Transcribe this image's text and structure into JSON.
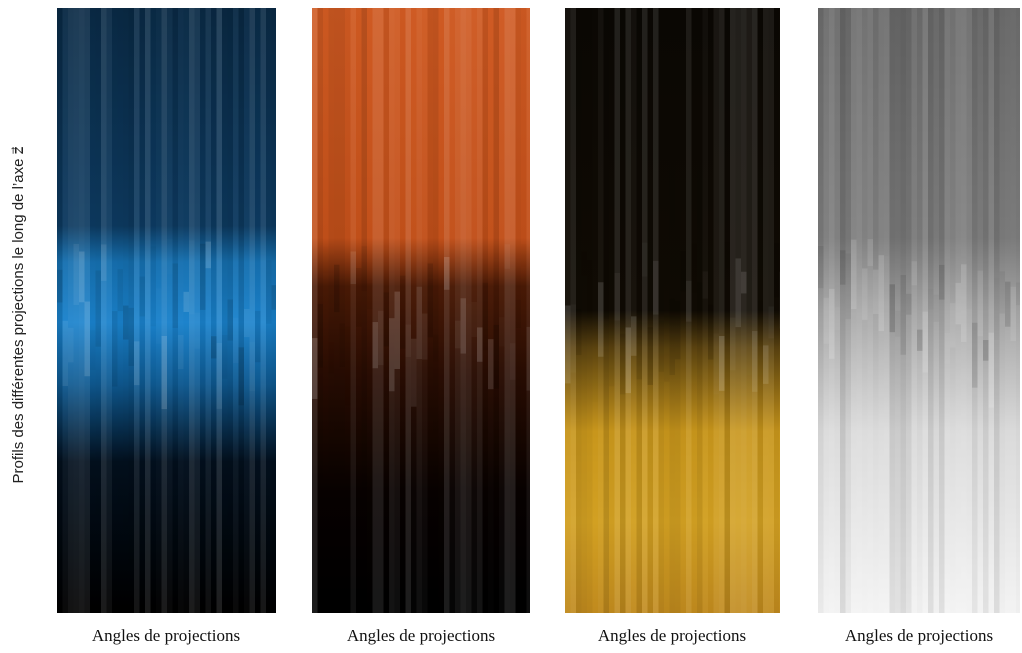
{
  "y_label": "Profils des différentes projections le long de l’axe z⃗",
  "panels": [
    {
      "x_label": "Angles de projections"
    },
    {
      "x_label": "Angles de projections"
    },
    {
      "x_label": "Angles de projections"
    },
    {
      "x_label": "Angles de projections"
    }
  ]
}
